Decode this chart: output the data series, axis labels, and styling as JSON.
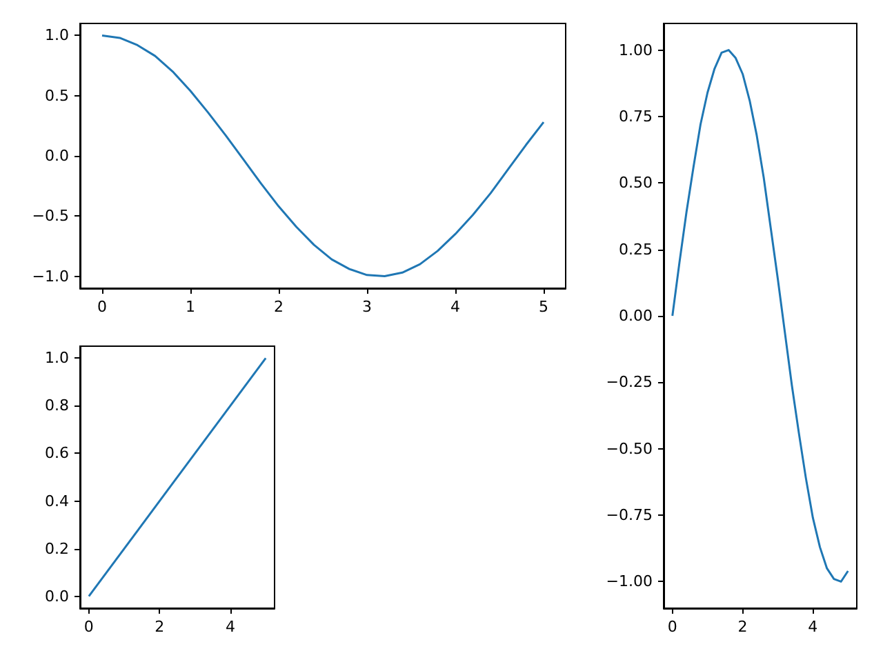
{
  "chart_data": [
    {
      "type": "line",
      "x": [
        0,
        0.2,
        0.4,
        0.6,
        0.8,
        1,
        1.2,
        1.4,
        1.6,
        1.8,
        2,
        2.2,
        2.4,
        2.6,
        2.8,
        3,
        3.2,
        3.4,
        3.6,
        3.8,
        4,
        4.2,
        4.4,
        4.6,
        4.8,
        5
      ],
      "series": [
        {
          "color": "#1f77b4",
          "values": [
            1,
            0.98,
            0.92,
            0.83,
            0.7,
            0.54,
            0.36,
            0.17,
            -0.03,
            -0.23,
            -0.42,
            -0.59,
            -0.74,
            -0.86,
            -0.94,
            -0.99,
            -1,
            -0.97,
            -0.9,
            -0.79,
            -0.65,
            -0.49,
            -0.31,
            -0.11,
            0.09,
            0.28
          ]
        }
      ],
      "xlim": [
        -0.25,
        5.25
      ],
      "xticks": [
        0,
        1,
        2,
        3,
        4,
        5
      ],
      "ylim": [
        -1.1,
        1.1
      ],
      "yticks": [
        {
          "value": -1,
          "label": "−1.0"
        },
        {
          "value": -0.5,
          "label": "−0.5"
        },
        {
          "value": 0,
          "label": "0.0"
        },
        {
          "value": 0.5,
          "label": "0.5"
        },
        {
          "value": 1,
          "label": "1.0"
        }
      ],
      "marker": "none"
    },
    {
      "type": "line",
      "x": [
        0,
        0.2,
        0.4,
        0.6,
        0.8,
        1,
        1.2,
        1.4,
        1.6,
        1.8,
        2,
        2.2,
        2.4,
        2.6,
        2.8,
        3,
        3.2,
        3.4,
        3.6,
        3.8,
        4,
        4.2,
        4.4,
        4.6,
        4.8,
        5
      ],
      "series": [
        {
          "color": "#1f77b4",
          "values": [
            0,
            0.2,
            0.39,
            0.56,
            0.72,
            0.84,
            0.93,
            0.99,
            1,
            0.97,
            0.91,
            0.81,
            0.68,
            0.52,
            0.33,
            0.14,
            -0.06,
            -0.26,
            -0.44,
            -0.61,
            -0.76,
            -0.87,
            -0.95,
            -0.99,
            -1,
            -0.96
          ]
        }
      ],
      "xlim": [
        -0.25,
        5.25
      ],
      "xticks": [
        0,
        2,
        4
      ],
      "ylim": [
        -1.1,
        1.1
      ],
      "yticks": [
        {
          "value": -1,
          "label": "−1.00"
        },
        {
          "value": -0.75,
          "label": "−0.75"
        },
        {
          "value": -0.5,
          "label": "−0.50"
        },
        {
          "value": -0.25,
          "label": "−0.25"
        },
        {
          "value": 0,
          "label": "0.00"
        },
        {
          "value": 0.25,
          "label": "0.25"
        },
        {
          "value": 0.5,
          "label": "0.50"
        },
        {
          "value": 0.75,
          "label": "0.75"
        },
        {
          "value": 1,
          "label": "1.00"
        }
      ],
      "marker": "none"
    },
    {
      "type": "line",
      "x": [
        0,
        5
      ],
      "series": [
        {
          "color": "#1f77b4",
          "values": [
            0,
            1
          ]
        }
      ],
      "xlim": [
        -0.25,
        5.25
      ],
      "xticks": [
        0,
        2,
        4
      ],
      "ylim": [
        -0.05,
        1.05
      ],
      "yticks": [
        {
          "value": 0,
          "label": "0.0"
        },
        {
          "value": 0.2,
          "label": "0.2"
        },
        {
          "value": 0.4,
          "label": "0.4"
        },
        {
          "value": 0.6,
          "label": "0.6"
        },
        {
          "value": 0.8,
          "label": "0.8"
        },
        {
          "value": 1,
          "label": "1.0"
        }
      ],
      "marker": "none"
    }
  ]
}
